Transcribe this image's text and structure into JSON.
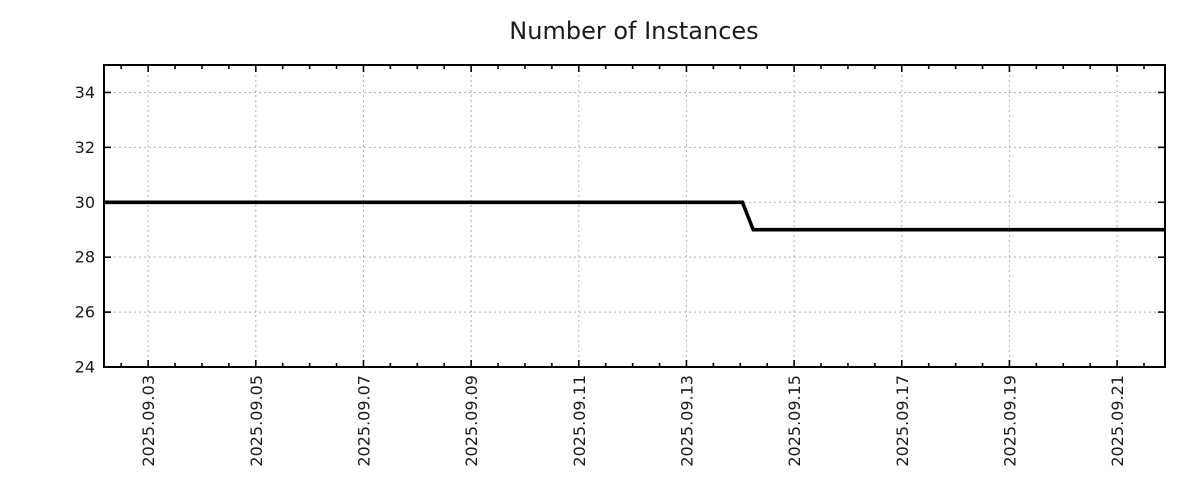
{
  "chart_data": {
    "type": "line",
    "title": "Number of Instances",
    "xlabel": "",
    "ylabel": "",
    "legend": "none",
    "grid": true,
    "x_unit": "date in 2025.09 (numeric x = day of month)",
    "xlim_days": [
      2.18,
      21.89
    ],
    "ylim": [
      24,
      35
    ],
    "y_ticks": [
      24,
      26,
      28,
      30,
      32,
      34
    ],
    "x_ticks": [
      {
        "day": 3,
        "label": "2025.09.03"
      },
      {
        "day": 5,
        "label": "2025.09.05"
      },
      {
        "day": 7,
        "label": "2025.09.07"
      },
      {
        "day": 9,
        "label": "2025.09.09"
      },
      {
        "day": 11,
        "label": "2025.09.11"
      },
      {
        "day": 13,
        "label": "2025.09.13"
      },
      {
        "day": 15,
        "label": "2025.09.15"
      },
      {
        "day": 17,
        "label": "2025.09.17"
      },
      {
        "day": 19,
        "label": "2025.09.19"
      },
      {
        "day": 21,
        "label": "2025.09.21"
      }
    ],
    "minor_x_tick_step_days": 0.5,
    "series": [
      {
        "name": "Number of Instances",
        "color": "#000000",
        "points": [
          [
            2.18,
            30
          ],
          [
            14.04,
            30
          ],
          [
            14.24,
            29
          ],
          [
            21.89,
            29
          ]
        ]
      }
    ]
  },
  "style": {
    "background": "#ffffff",
    "axis_color": "#000000",
    "grid_color": "#b0b0b0",
    "text_color": "#1a1a1a",
    "line_color": "#000000"
  }
}
